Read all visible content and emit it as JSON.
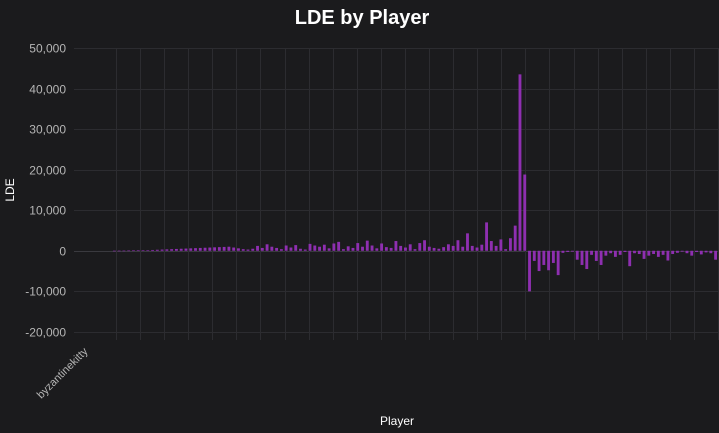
{
  "chart_data": {
    "type": "bar",
    "title": "LDE by Player",
    "xlabel": "Player",
    "ylabel": "LDE",
    "ylim": [
      -22000,
      50000
    ],
    "yticks": [
      -20000,
      -10000,
      0,
      10000,
      20000,
      30000,
      40000,
      50000
    ],
    "ytick_labels": [
      "-20,000",
      "-10,000",
      "0",
      "10,000",
      "20,000",
      "30,000",
      "40,000",
      "50,000"
    ],
    "grid": true,
    "bar_color": "#8e2fb0",
    "first_category_label": "byzantinekitty",
    "values": [
      20,
      30,
      40,
      60,
      80,
      100,
      120,
      150,
      200,
      250,
      300,
      350,
      400,
      450,
      500,
      550,
      600,
      650,
      700,
      750,
      800,
      850,
      900,
      950,
      1000,
      800,
      600,
      400,
      300,
      500,
      1200,
      700,
      1600,
      1000,
      700,
      400,
      1300,
      800,
      1400,
      500,
      300,
      1700,
      1300,
      1000,
      1500,
      600,
      1800,
      2200,
      400,
      1100,
      700,
      1900,
      1000,
      2500,
      1300,
      600,
      1800,
      900,
      700,
      2400,
      1200,
      800,
      1600,
      400,
      1900,
      2600,
      1000,
      700,
      500,
      900,
      1600,
      1200,
      2600,
      1000,
      4300,
      1200,
      800,
      1500,
      7000,
      2400,
      1200,
      2800,
      400,
      3100,
      6200,
      43500,
      18800,
      -10000,
      -2500,
      -5000,
      -3500,
      -4800,
      -3000,
      -6000,
      -500,
      -300,
      -200,
      -2200,
      -3500,
      -4500,
      -1000,
      -2500,
      -3500,
      -1200,
      -600,
      -1500,
      -1000,
      -300,
      -3800,
      -600,
      -800,
      -2000,
      -1200,
      -800,
      -1500,
      -1000,
      -2400,
      -800,
      -500,
      -200,
      -600,
      -1200,
      -300,
      -900,
      -400,
      -600,
      -2200
    ]
  }
}
